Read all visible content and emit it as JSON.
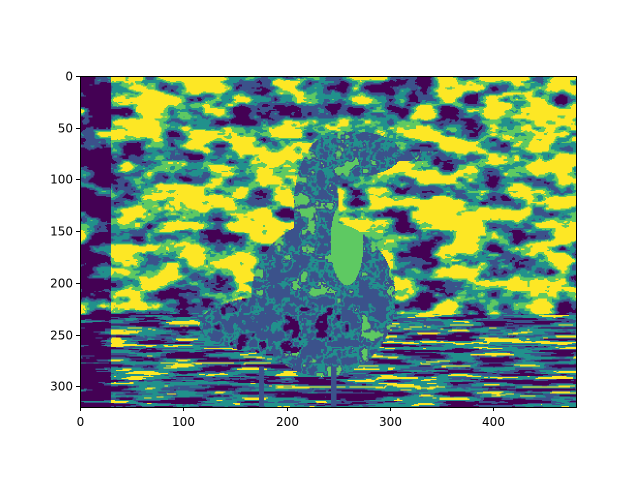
{
  "chart_data": {
    "type": "heatmap",
    "title": "",
    "xlabel": "",
    "ylabel": "",
    "xlim": [
      0,
      480
    ],
    "ylim": [
      320,
      0
    ],
    "image_size": [
      480,
      320
    ],
    "colormap": "viridis",
    "levels": 5,
    "level_colors": [
      "#440154",
      "#3b528b",
      "#21918c",
      "#5ec962",
      "#fde725"
    ],
    "subject": "heron-like bird wading in water, posterized",
    "x_ticks": [
      {
        "value": 0,
        "label": "0"
      },
      {
        "value": 100,
        "label": "100"
      },
      {
        "value": 200,
        "label": "200"
      },
      {
        "value": 300,
        "label": "300"
      },
      {
        "value": 400,
        "label": "400"
      }
    ],
    "y_ticks": [
      {
        "value": 0,
        "label": "0"
      },
      {
        "value": 50,
        "label": "50"
      },
      {
        "value": 100,
        "label": "100"
      },
      {
        "value": 150,
        "label": "150"
      },
      {
        "value": 200,
        "label": "200"
      },
      {
        "value": 250,
        "label": "250"
      },
      {
        "value": 300,
        "label": "300"
      }
    ],
    "grid": false,
    "legend": "none"
  }
}
